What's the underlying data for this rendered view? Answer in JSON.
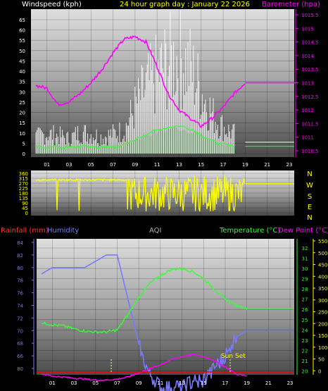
{
  "header": {
    "windspeed_label": "Windspeed (kph)",
    "title": "24 hour graph day : January 22 2026",
    "barometer_label": "Barometer (hpa)"
  },
  "compass_letters": [
    "N",
    "W",
    "S",
    "E",
    "N"
  ],
  "bottom_header": {
    "rainfall_label": "Rainfall (mm)",
    "humidity_label": "Humidity",
    "aqi_label": "AQI",
    "temperature_label": "Temperature (°C)",
    "dewpoint_label": "Dew Point (°C)"
  },
  "sunset_label": "Sun Set",
  "colors": {
    "windspeed": "#ffffff",
    "gust_fill": "#1f5e1f",
    "wind_avg": "#33ff33",
    "barometer": "#ff00ff",
    "direction": "#ffff00",
    "rainfall": "#ff0000",
    "humidity": "#7a7aff",
    "temperature": "#33ff33",
    "dewpoint": "#ff00ff",
    "aqi": "#b0b0b0"
  },
  "chart_data": [
    {
      "type": "line",
      "id": "wind",
      "title": "",
      "xlabel": "",
      "x_ticks": [
        "01",
        "03",
        "05",
        "07",
        "09",
        "11",
        "13",
        "15",
        "17",
        "19",
        "21",
        "23"
      ],
      "y_left_ticks": [
        "0",
        "5",
        "10",
        "15",
        "20",
        "25",
        "30",
        "35",
        "40",
        "45",
        "50",
        "55",
        "60",
        "65"
      ],
      "ylim_left": [
        0,
        67
      ],
      "y_right_ticks": [
        "1010.5",
        "1011",
        "1011.5",
        "1012",
        "1012.5",
        "1013",
        "1013.5",
        "1014",
        "1014.5",
        "1015",
        "1015.5"
      ],
      "ylim_right": [
        1010.3,
        1015.75
      ],
      "series": [
        {
          "name": "Windspeed (kph)",
          "axis": "left",
          "x": [
            0,
            1,
            2,
            3,
            4,
            5,
            6,
            7,
            8,
            9,
            10,
            11,
            12,
            13,
            14,
            15,
            16,
            17,
            18,
            19,
            20,
            21,
            22,
            23
          ],
          "values": [
            10,
            12,
            11,
            9,
            13,
            12,
            10,
            12,
            14,
            28,
            40,
            48,
            55,
            58,
            52,
            38,
            24,
            16,
            12,
            null,
            null,
            null,
            null,
            null
          ]
        },
        {
          "name": "Barometer (hpa)",
          "axis": "right",
          "x": [
            0,
            1,
            2,
            3,
            4,
            5,
            6,
            7,
            8,
            9,
            10,
            11,
            12,
            13,
            14,
            15,
            16,
            17,
            18,
            19,
            20,
            21,
            22,
            23
          ],
          "values": [
            1012.9,
            1012.8,
            1012.2,
            1012.3,
            1012.6,
            1013.0,
            1013.5,
            1014.1,
            1014.6,
            1014.7,
            1014.5,
            1013.6,
            1012.6,
            1012.0,
            1011.7,
            1011.4,
            1011.7,
            1012.1,
            1012.6,
            1013.0,
            1013.0,
            1013.0,
            1013.0,
            1013.0
          ]
        }
      ]
    },
    {
      "type": "line",
      "id": "direction",
      "title": "",
      "x_ticks": [],
      "y_ticks": [
        "360",
        "315",
        "270",
        "225",
        "180",
        "135",
        "90",
        "45",
        "0"
      ],
      "ylim": [
        0,
        360
      ],
      "series": [
        {
          "name": "Wind direction",
          "x": [
            0,
            2,
            4,
            6,
            8,
            9,
            10,
            12,
            14,
            16,
            18,
            19,
            23
          ],
          "values": [
            300,
            300,
            300,
            300,
            300,
            160,
            170,
            150,
            170,
            180,
            170,
            265,
            265
          ]
        }
      ]
    },
    {
      "type": "line",
      "id": "temp_hum",
      "title": "",
      "x_ticks": [
        "01",
        "03",
        "05",
        "07",
        "09",
        "11",
        "13",
        "15",
        "17",
        "19",
        "21",
        "23"
      ],
      "y_humidity_ticks": [
        "84",
        "82",
        "80",
        "78",
        "76",
        "74",
        "72",
        "70",
        "68",
        "66",
        "80"
      ],
      "y_temp_ticks": [
        "32",
        "31",
        "30",
        "29",
        "28",
        "27",
        "26",
        "25",
        "24",
        "23",
        "22",
        "21",
        "20",
        "19"
      ],
      "ylim_temp": [
        18.5,
        32.5
      ],
      "y_aqi_ticks": [
        "550",
        "500",
        "450",
        "400",
        "350",
        "300",
        "250",
        "200",
        "150",
        "100",
        "50",
        "0"
      ],
      "ylim_aqi": [
        0,
        560
      ],
      "series": [
        {
          "name": "Humidity",
          "x": [
            0,
            1,
            2,
            3,
            4,
            5,
            6,
            7,
            8,
            9,
            10,
            11,
            12,
            13,
            14,
            15,
            16,
            17,
            18,
            19,
            23
          ],
          "values": [
            79,
            80,
            80,
            80,
            80,
            81,
            82,
            82,
            75,
            68,
            63,
            61,
            61,
            61,
            62,
            62,
            64,
            66,
            69,
            70,
            70
          ]
        },
        {
          "name": "Temperature (°C)",
          "x": [
            0,
            1,
            2,
            3,
            4,
            5,
            6,
            7,
            8,
            9,
            10,
            11,
            12,
            13,
            14,
            15,
            16,
            17,
            18,
            19,
            23
          ],
          "values": [
            24.7,
            24.5,
            24.4,
            24.1,
            23.9,
            23.8,
            23.8,
            24.0,
            25.5,
            27.2,
            28.5,
            29.3,
            29.9,
            30.0,
            29.7,
            29.0,
            28.0,
            27.0,
            26.4,
            26.1,
            26.1
          ]
        },
        {
          "name": "Dew Point (°C)",
          "x": [
            0,
            1,
            2,
            3,
            4,
            5,
            6,
            7,
            8,
            9,
            10,
            11,
            12,
            13,
            14,
            15,
            16,
            17,
            18,
            19,
            23
          ],
          "values": [
            19.7,
            19.5,
            19.4,
            19.3,
            19.2,
            19.1,
            19.1,
            19.2,
            19.4,
            19.8,
            20.2,
            20.6,
            21.1,
            21.4,
            21.6,
            21.4,
            21.0,
            20.4,
            19.7,
            19.5,
            19.5
          ]
        }
      ]
    }
  ]
}
